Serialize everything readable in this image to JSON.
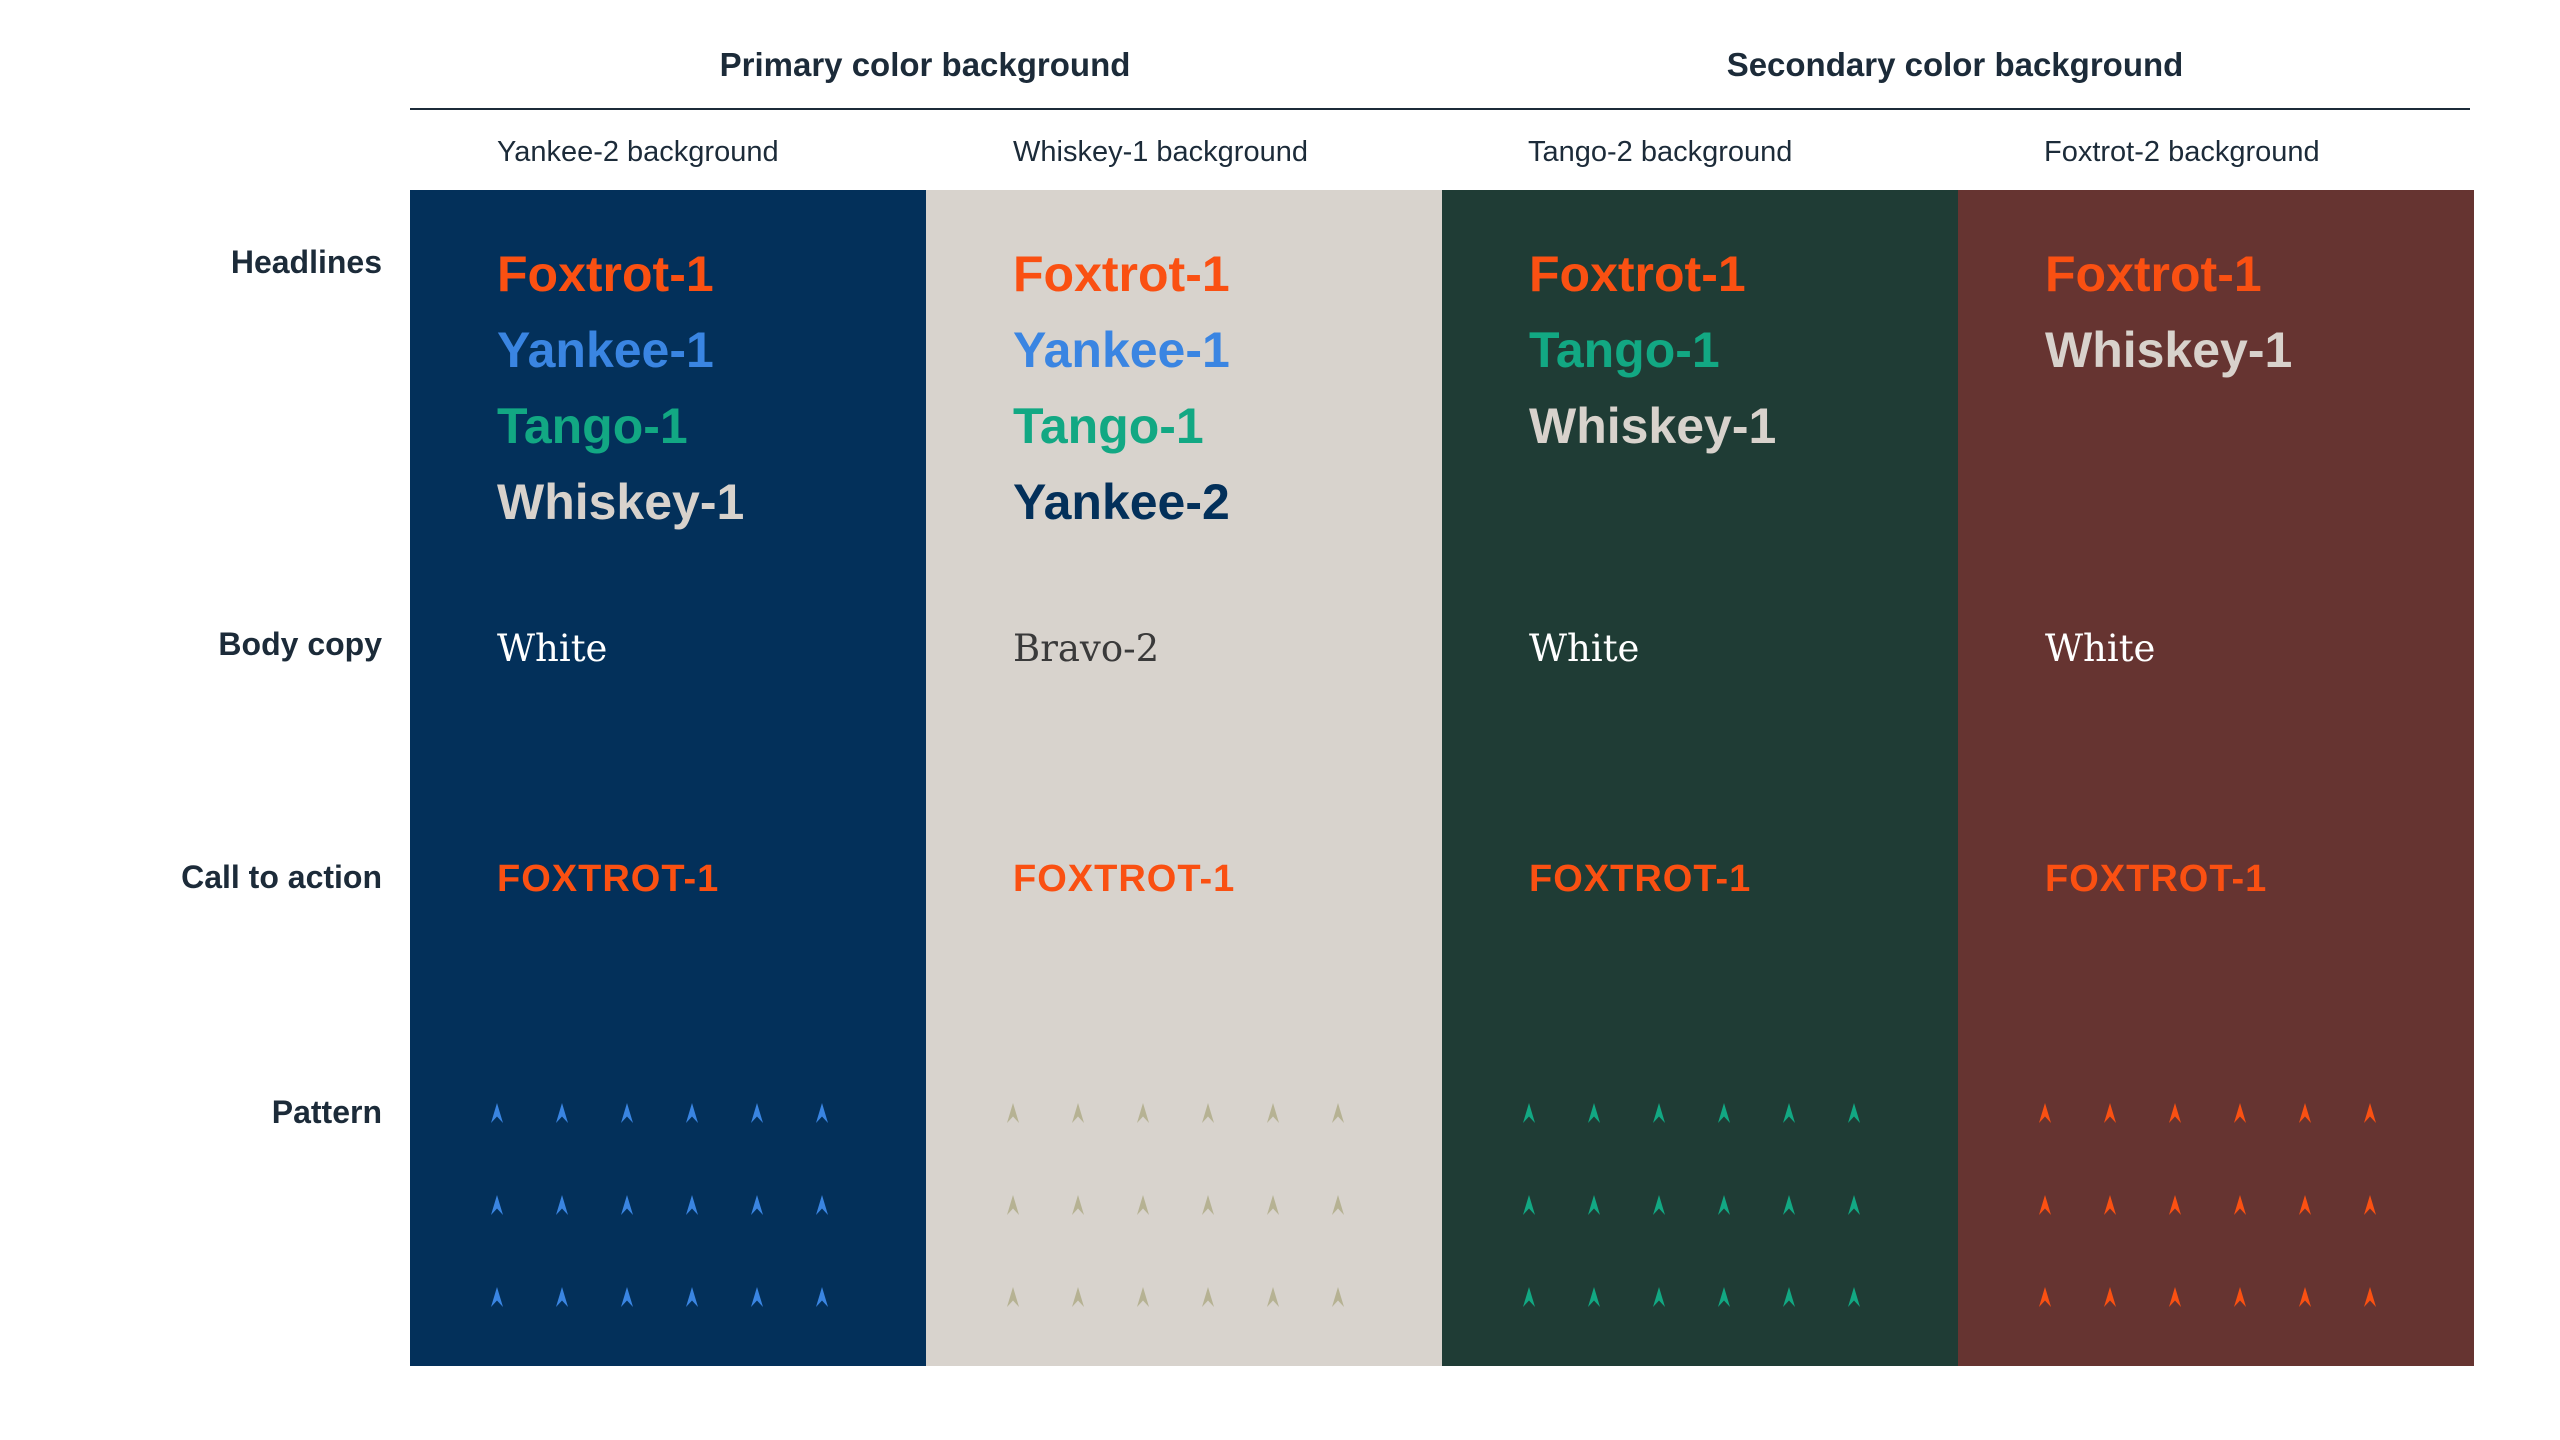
{
  "groups": {
    "primary": "Primary color background",
    "secondary": "Secondary color background"
  },
  "row_labels": {
    "headlines": "Headlines",
    "body_copy": "Body copy",
    "call_to_action": "Call to action",
    "pattern": "Pattern"
  },
  "columns": [
    {
      "header": "Yankee-2 background",
      "background": "#03305a",
      "headlines": [
        {
          "text": "Foxtrot-1",
          "color": "#fa5012"
        },
        {
          "text": "Yankee-1",
          "color": "#3a85e2"
        },
        {
          "text": "Tango-1",
          "color": "#12a883"
        },
        {
          "text": "Whiskey-1",
          "color": "#d8d2cc"
        }
      ],
      "body": {
        "text": "White",
        "color": "#ffffff"
      },
      "cta": {
        "text": "FOXTROT-1",
        "color": "#fa5012"
      },
      "pattern": {
        "icon": "arrow-up-icon",
        "color": "#3a85e2",
        "rows": 3,
        "cols": 6
      }
    },
    {
      "header": "Whiskey-1 background",
      "background": "#d8d3cd",
      "headlines": [
        {
          "text": "Foxtrot-1",
          "color": "#fa5012"
        },
        {
          "text": "Yankee-1",
          "color": "#3a85e2"
        },
        {
          "text": "Tango-1",
          "color": "#12a883"
        },
        {
          "text": "Yankee-2",
          "color": "#03305a"
        }
      ],
      "body": {
        "text": "Bravo-2",
        "color": "#3a3a3a"
      },
      "cta": {
        "text": "FOXTROT-1",
        "color": "#fa5012"
      },
      "pattern": {
        "icon": "arrow-up-icon",
        "color": "#b6b293",
        "rows": 3,
        "cols": 6
      }
    },
    {
      "header": "Tango-2 background",
      "background": "#1f3c35",
      "headlines": [
        {
          "text": "Foxtrot-1",
          "color": "#fa5012"
        },
        {
          "text": "Tango-1",
          "color": "#12a883"
        },
        {
          "text": "Whiskey-1",
          "color": "#d8d2cc"
        }
      ],
      "body": {
        "text": "White",
        "color": "#ffffff"
      },
      "cta": {
        "text": "FOXTROT-1",
        "color": "#fa5012"
      },
      "pattern": {
        "icon": "arrow-up-icon",
        "color": "#12a883",
        "rows": 3,
        "cols": 6
      }
    },
    {
      "header": "Foxtrot-2 background",
      "background": "#663431",
      "headlines": [
        {
          "text": "Foxtrot-1",
          "color": "#fa5012"
        },
        {
          "text": "Whiskey-1",
          "color": "#d8d2cc"
        }
      ],
      "body": {
        "text": "White",
        "color": "#ffffff"
      },
      "cta": {
        "text": "FOXTROT-1",
        "color": "#fa5012"
      },
      "pattern": {
        "icon": "arrow-up-icon",
        "color": "#fa5012",
        "rows": 3,
        "cols": 6
      }
    }
  ]
}
